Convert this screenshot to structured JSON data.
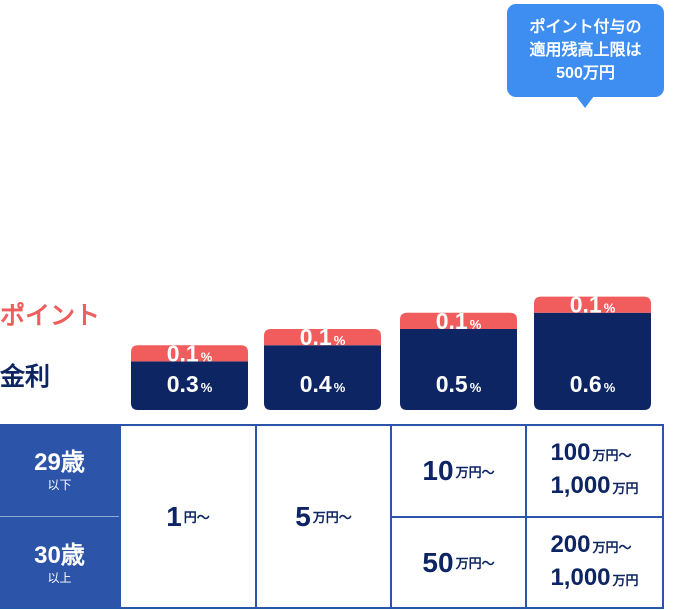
{
  "chart_data": {
    "type": "bar",
    "categories": [
      "1円〜",
      "5万円〜",
      "10万円〜 / 50万円〜",
      "100万円〜1,000万円 / 200万円〜1,000万円"
    ],
    "series": [
      {
        "name": "金利",
        "values": [
          0.3,
          0.4,
          0.5,
          0.6
        ],
        "labels": [
          "0.3",
          "0.4",
          "0.5",
          "0.6"
        ],
        "color": "#0d2563"
      },
      {
        "name": "ポイント",
        "values": [
          0.1,
          0.1,
          0.1,
          0.1
        ],
        "labels": [
          "0.1",
          "0.1",
          "0.1",
          "0.1"
        ],
        "color": "#f15c5c"
      }
    ],
    "unit": "%",
    "stacked": true,
    "legend": [
      "ポイント",
      "金利"
    ]
  },
  "legend": {
    "point": "ポイント",
    "kinri": "金利"
  },
  "callout": {
    "line1": "ポイント付与の",
    "line2": "適用残高上限は",
    "line3": "500万円"
  },
  "table": {
    "age_rows": [
      {
        "main": "29歳",
        "sub": "以下"
      },
      {
        "main": "30歳",
        "sub": "以上"
      }
    ],
    "tiers": {
      "t1": {
        "num": "1",
        "unit": "円〜"
      },
      "t2": {
        "num": "5",
        "unit": "万円〜"
      },
      "t3_29": {
        "num": "10",
        "unit": "万円〜"
      },
      "t3_30": {
        "num": "50",
        "unit": "万円〜"
      },
      "t4_29": {
        "num_a": "100",
        "unit_a": "万円〜",
        "num_b": "1,000",
        "unit_b": "万円"
      },
      "t4_30": {
        "num_a": "200",
        "unit_a": "万円〜",
        "num_b": "1,000",
        "unit_b": "万円"
      }
    }
  },
  "colors": {
    "navy": "#0d2563",
    "red": "#f15c5c",
    "blue": "#2c54a8",
    "callout": "#3d8ef0"
  }
}
